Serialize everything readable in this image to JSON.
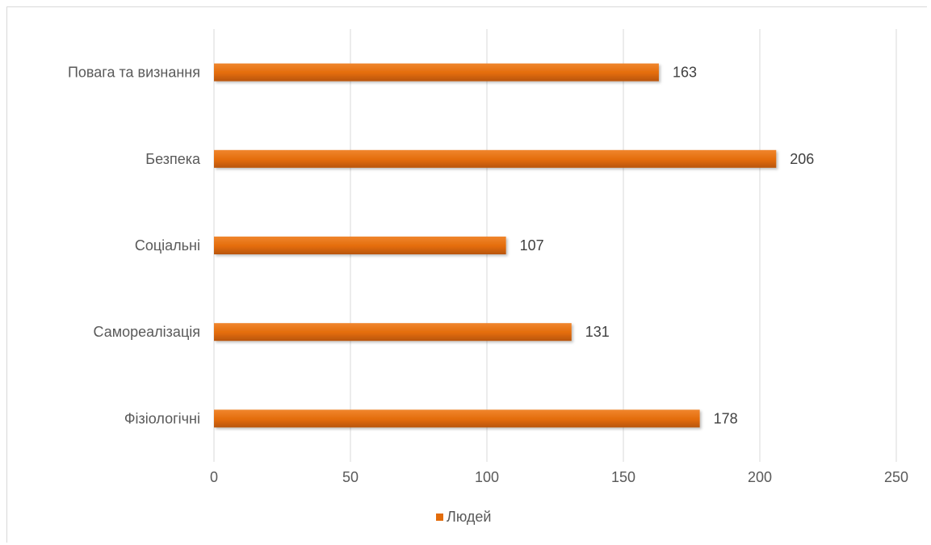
{
  "chart_data": {
    "type": "bar",
    "orientation": "horizontal",
    "categories": [
      "Повага та визнання",
      "Безпека",
      "Соціальні",
      "Самореалізація",
      "Фізіологічні"
    ],
    "series": [
      {
        "name": "Людей",
        "values": [
          163,
          206,
          107,
          131,
          178
        ],
        "color": "#E36C0A"
      }
    ],
    "title": "",
    "xlabel": "",
    "ylabel": "",
    "xlim": [
      0,
      250
    ],
    "x_ticks": [
      "0",
      "50",
      "100",
      "150",
      "200",
      "250"
    ],
    "grid": true,
    "data_labels": true,
    "legend": {
      "position": "bottom",
      "entries": [
        "Людей"
      ]
    }
  }
}
